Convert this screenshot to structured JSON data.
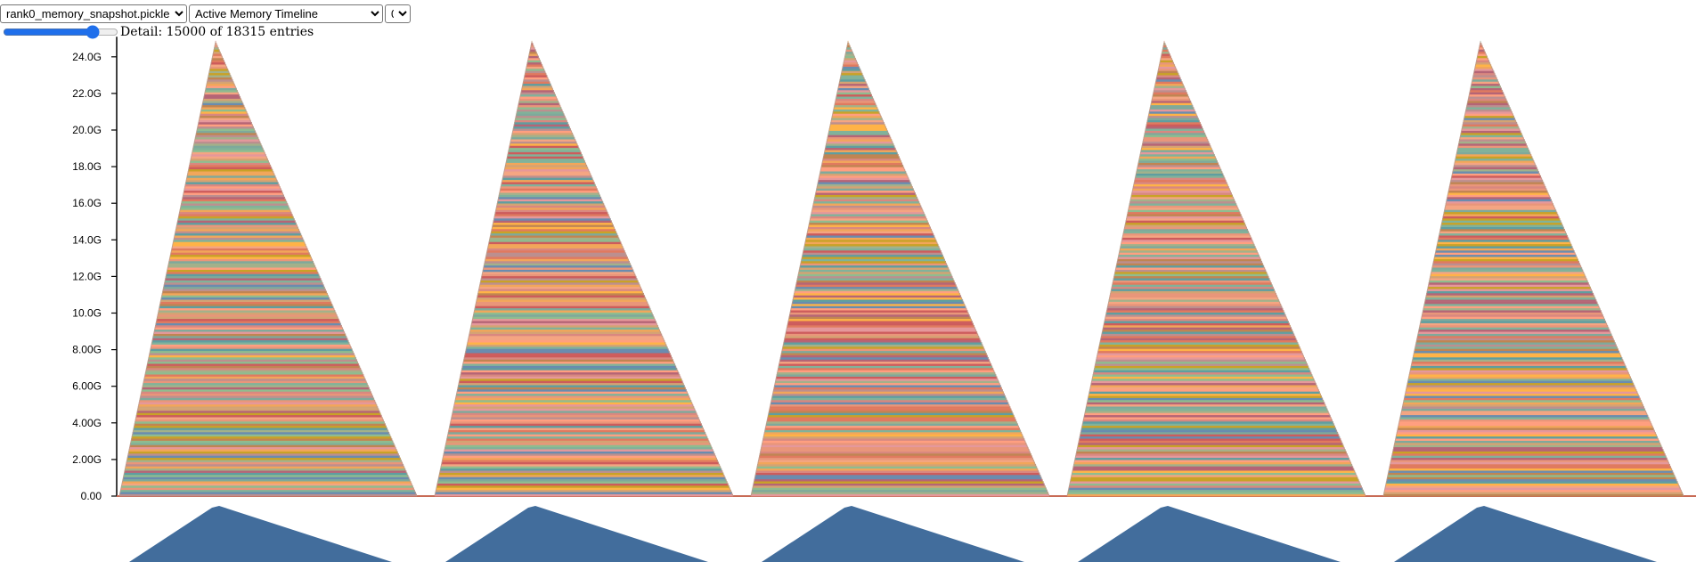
{
  "controls": {
    "file": {
      "selected": "rank0_memory_snapshot.pickle"
    },
    "view": {
      "selected": "Active Memory Timeline"
    },
    "rank": {
      "selected": "0"
    }
  },
  "detail": {
    "label": "Detail: 15000 of 18315 entries",
    "shown": 15000,
    "total": 18315
  },
  "chart_data": {
    "type": "area",
    "yticks": [
      "0.00",
      "2.00G",
      "4.00G",
      "6.00G",
      "8.00G",
      "10.0G",
      "12.0G",
      "14.0G",
      "16.0G",
      "18.0G",
      "20.0G",
      "22.0G",
      "24.0G"
    ],
    "ylim": [
      0,
      25
    ],
    "grid": false,
    "legend": "none",
    "peaks": [
      {
        "peak": 24.8
      },
      {
        "peak": 24.8
      },
      {
        "peak": 24.8
      },
      {
        "peak": 24.8
      },
      {
        "peak": 24.8
      }
    ],
    "minimap_color": "#426d9c",
    "stripe_palette": [
      "#e07a5f",
      "#f2a65a",
      "#81b29a",
      "#c9a227",
      "#e9967a",
      "#5f9ea0",
      "#cd5c5c",
      "#d4a373",
      "#8fbc8f",
      "#bc8f8f",
      "#f4a582",
      "#6a8caf",
      "#d98880",
      "#a3b18a",
      "#ff9f80",
      "#b56576",
      "#ffb347",
      "#7fa99b",
      "#e5989b",
      "#c08552"
    ]
  }
}
